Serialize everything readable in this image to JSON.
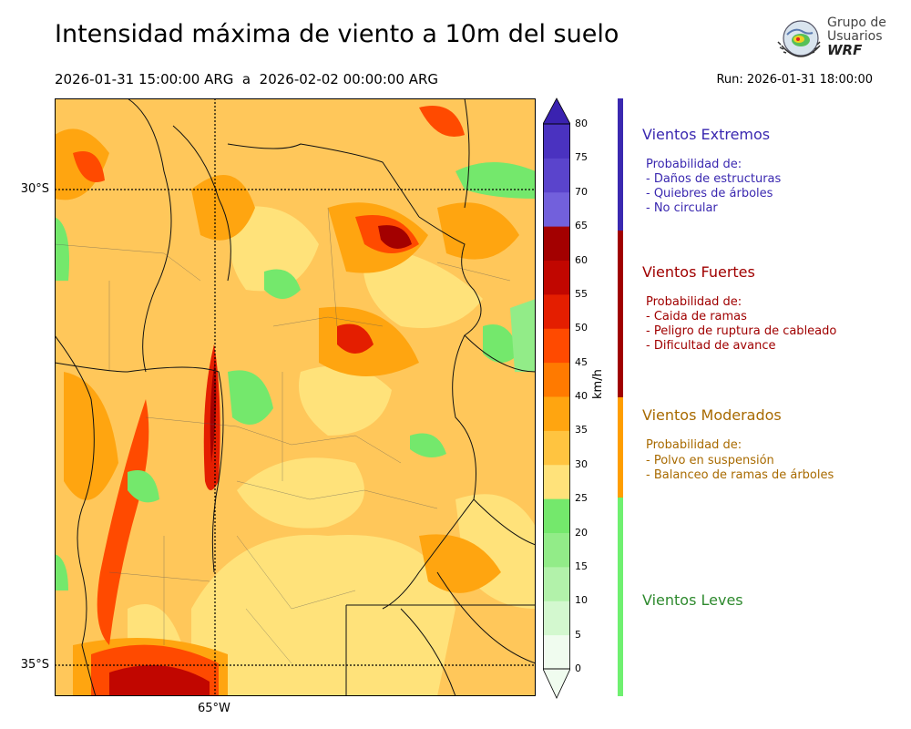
{
  "header": {
    "title": "Intensidad máxima de viento a 10m del suelo",
    "valid_range": "2026-01-31 15:00:00 ARG  a  2026-02-02 00:00:00 ARG",
    "run": "Run: 2026-01-31 18:00:00"
  },
  "logo": {
    "line1": "Grupo de",
    "line2": "Usuarios",
    "line3": "WRF"
  },
  "map": {
    "lat_labels": [
      "30°S",
      "35°S"
    ],
    "lon_labels": [
      "65°W"
    ]
  },
  "colorbar": {
    "unit": "km/h",
    "ticks": [
      "0",
      "5",
      "10",
      "15",
      "20",
      "25",
      "30",
      "35",
      "40",
      "45",
      "50",
      "55",
      "60",
      "65",
      "70",
      "75",
      "80"
    ],
    "colors": [
      "#f0fcef",
      "#d3f8cf",
      "#b2f2aa",
      "#92ec88",
      "#74e86c",
      "#ffe27a",
      "#ffc440",
      "#ffa510",
      "#ff7a00",
      "#ff4a00",
      "#e41e00",
      "#c10600",
      "#a30000",
      "#7260dc",
      "#5a44cc",
      "#4a32c0",
      "#3a22b0"
    ]
  },
  "categories": [
    {
      "title": "Vientos Extremos",
      "color": "#3a28b0",
      "bar_color": "#3a28b0",
      "heading": "Probabilidad de:",
      "items": [
        "- Daños de estructuras",
        "- Quiebres de árboles",
        "- No circular"
      ]
    },
    {
      "title": "Vientos Fuertes",
      "color": "#a00000",
      "bar_color": "#a00000",
      "heading": "Probabilidad de:",
      "items": [
        "- Caida de ramas",
        "- Peligro de ruptura de cableado",
        "- Dificultad de avance"
      ]
    },
    {
      "title": "Vientos Moderados",
      "color": "#a86a00",
      "bar_color": "#ff9e00",
      "heading": "Probabilidad de:",
      "items": [
        "- Polvo en suspensión",
        "- Balanceo de ramas de árboles"
      ]
    },
    {
      "title": "Vientos Leves",
      "color": "#2e8a2e",
      "bar_color": "#6ff070",
      "heading": "",
      "items": []
    }
  ]
}
